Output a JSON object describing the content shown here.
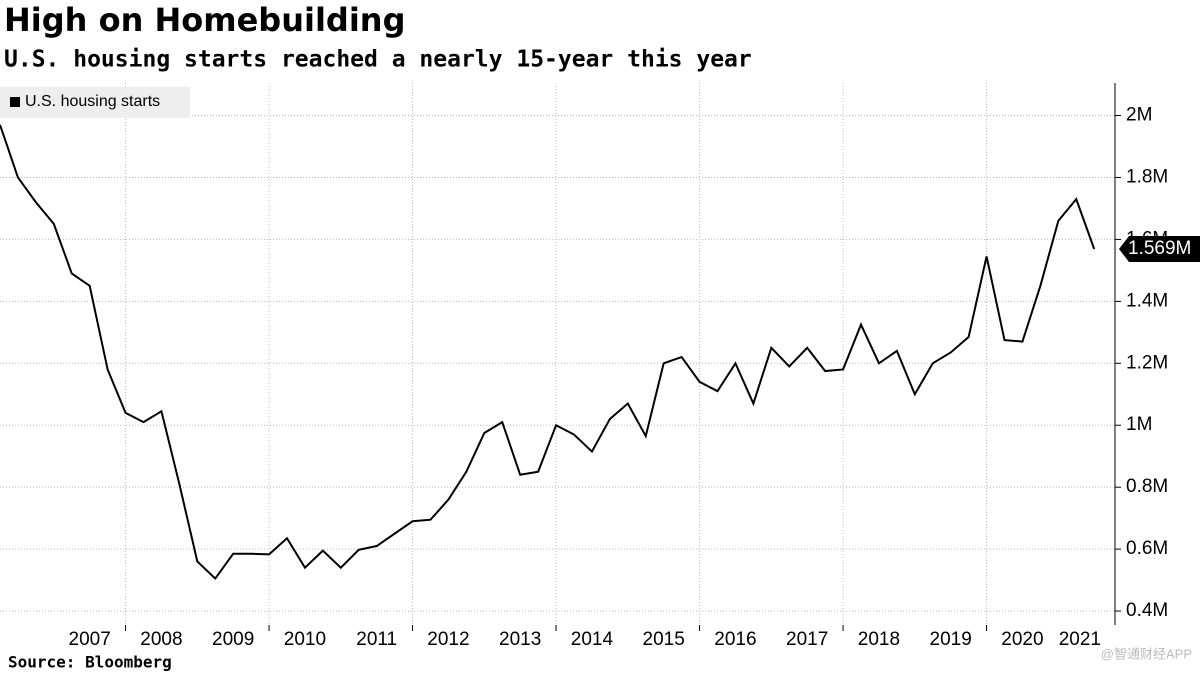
{
  "chart_data": {
    "type": "line",
    "title": "High on Homebuilding",
    "subtitle": "U.S. housing starts reached a nearly 15-year this year",
    "source": "Source: Bloomberg",
    "watermark": "@智通财经APP",
    "series": [
      {
        "name": "U.S. housing starts",
        "color": "#000000",
        "x": [
          2006.25,
          2006.5,
          2006.75,
          2007,
          2007.25,
          2007.5,
          2007.75,
          2008,
          2008.25,
          2008.5,
          2008.75,
          2009,
          2009.25,
          2009.5,
          2009.75,
          2010,
          2010.25,
          2010.5,
          2010.75,
          2011,
          2011.25,
          2011.5,
          2011.75,
          2012,
          2012.25,
          2012.5,
          2012.75,
          2013,
          2013.25,
          2013.5,
          2013.75,
          2014,
          2014.25,
          2014.5,
          2014.75,
          2015,
          2015.25,
          2015.5,
          2015.75,
          2016,
          2016.25,
          2016.5,
          2016.75,
          2017,
          2017.25,
          2017.5,
          2017.75,
          2018,
          2018.25,
          2018.5,
          2018.75,
          2019,
          2019.25,
          2019.5,
          2019.75,
          2020,
          2020.25,
          2020.5,
          2020.75,
          2021,
          2021.25,
          2021.5
        ],
        "values": [
          1.97,
          1.8,
          1.72,
          1.65,
          1.49,
          1.45,
          1.18,
          1.04,
          1.01,
          1.045,
          0.81,
          0.56,
          0.505,
          0.585,
          0.585,
          0.583,
          0.635,
          0.54,
          0.595,
          0.54,
          0.598,
          0.61,
          0.65,
          0.69,
          0.695,
          0.76,
          0.85,
          0.975,
          1.01,
          0.84,
          0.85,
          1.0,
          0.97,
          0.915,
          1.02,
          1.07,
          0.965,
          1.2,
          1.22,
          1.14,
          1.11,
          1.2,
          1.07,
          1.25,
          1.19,
          1.25,
          1.175,
          1.18,
          1.325,
          1.2,
          1.24,
          1.1,
          1.2,
          1.235,
          1.285,
          1.545,
          1.275,
          1.27,
          1.45,
          1.66,
          1.73,
          1.569
        ],
        "value_labels": [
          null,
          null,
          null,
          null,
          null,
          null,
          null,
          null,
          null,
          null,
          null,
          null,
          null,
          null,
          null,
          null,
          null,
          null,
          null,
          null,
          null,
          null,
          null,
          null,
          null,
          null,
          null,
          null,
          null,
          null,
          null,
          null,
          null,
          null,
          null,
          null,
          null,
          null,
          null,
          null,
          null,
          null,
          null,
          null,
          null,
          null,
          null,
          null,
          null,
          null,
          null,
          null,
          null,
          null,
          null,
          null,
          null,
          null,
          null,
          null,
          null,
          "1.569M"
        ]
      }
    ],
    "xlim": [
      2006.25,
      2021.79
    ],
    "xticks": [
      {
        "value": 2007.5,
        "label": "2007"
      },
      {
        "value": 2008.5,
        "label": "2008"
      },
      {
        "value": 2009.5,
        "label": "2009"
      },
      {
        "value": 2010.5,
        "label": "2010"
      },
      {
        "value": 2011.5,
        "label": "2011"
      },
      {
        "value": 2012.5,
        "label": "2012"
      },
      {
        "value": 2013.5,
        "label": "2013"
      },
      {
        "value": 2014.5,
        "label": "2014"
      },
      {
        "value": 2015.5,
        "label": "2015"
      },
      {
        "value": 2016.5,
        "label": "2016"
      },
      {
        "value": 2017.5,
        "label": "2017"
      },
      {
        "value": 2018.5,
        "label": "2018"
      },
      {
        "value": 2019.5,
        "label": "2019"
      },
      {
        "value": 2020.5,
        "label": "2020"
      },
      {
        "value": 2021.3,
        "label": "2021"
      }
    ],
    "xgrid": [
      2008,
      2010,
      2012,
      2014,
      2016,
      2018,
      2020
    ],
    "ylim": [
      0.355,
      2.105
    ],
    "yticks": [
      {
        "value": 0.4,
        "label": "0.4M"
      },
      {
        "value": 0.6,
        "label": "0.6M"
      },
      {
        "value": 0.8,
        "label": "0.8M"
      },
      {
        "value": 1,
        "label": "1M"
      },
      {
        "value": 1.2,
        "label": "1.2M"
      },
      {
        "value": 1.4,
        "label": "1.4M"
      },
      {
        "value": 1.6,
        "label": "1.6M"
      },
      {
        "value": 1.8,
        "label": "1.8M"
      },
      {
        "value": 2,
        "label": "2M"
      }
    ],
    "grid": true,
    "legend": "top-left"
  }
}
